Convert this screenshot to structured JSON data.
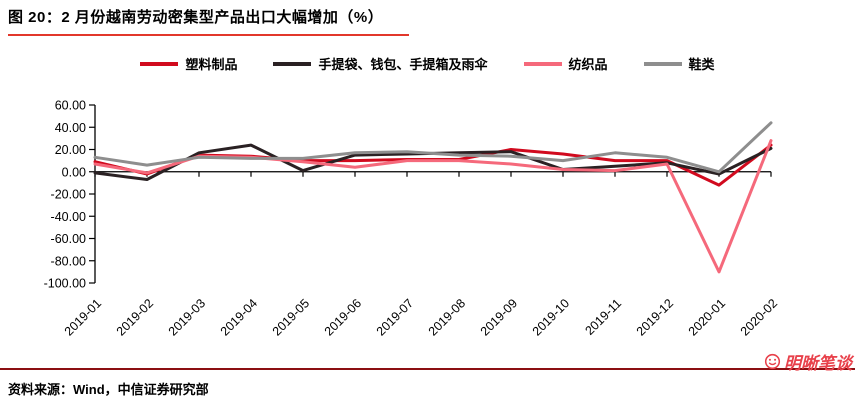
{
  "title": "图 20：2 月份越南劳动密集型产品出口大幅增加（%）",
  "source": "资料来源：Wind，中信证券研究部",
  "watermark": "明晰笔谈",
  "colors": {
    "title_underline": "#e2372b",
    "bottom_rule": "#8b0f12",
    "watermark_red": "#e8414b",
    "axis": "#000000"
  },
  "chart_data": {
    "type": "line",
    "x": [
      "2019-01",
      "2019-02",
      "2019-03",
      "2019-04",
      "2019-05",
      "2019-06",
      "2019-07",
      "2019-08",
      "2019-09",
      "2019-10",
      "2019-11",
      "2019-12",
      "2020-01",
      "2020-02"
    ],
    "series": [
      {
        "id": "plastics",
        "name": "塑料制品",
        "color": "#d10a1e",
        "values": [
          9,
          -2,
          15,
          14,
          10,
          10,
          11,
          11,
          20,
          16,
          10,
          10,
          -12,
          24
        ]
      },
      {
        "id": "bags-umbrellas",
        "name": "手提袋、钱包、手提箱及雨伞",
        "color": "#2a2123",
        "values": [
          -1,
          -7,
          17,
          24,
          1,
          15,
          16,
          17,
          18,
          2,
          5,
          8,
          -2,
          21
        ]
      },
      {
        "id": "textiles",
        "name": "纺织品",
        "color": "#f5697b",
        "values": [
          7,
          -1,
          14,
          13,
          9,
          4,
          10,
          10,
          7,
          2,
          1,
          7,
          -90,
          28
        ]
      },
      {
        "id": "footwear",
        "name": "鞋类",
        "color": "#8e8e8e",
        "values": [
          13,
          6,
          13,
          12,
          12,
          17,
          18,
          15,
          14,
          10,
          17,
          13,
          0,
          44
        ]
      }
    ],
    "ylim": [
      -100,
      60
    ],
    "ytick_step": 20,
    "ytick_labels": [
      "60.00",
      "40.00",
      "20.00",
      "0.00",
      "-20.00",
      "-40.00",
      "-60.00",
      "-80.00",
      "-100.00"
    ],
    "legend_position": "top",
    "grid": false,
    "x_axis_at_zero": true,
    "xlabel": "",
    "ylabel": ""
  }
}
